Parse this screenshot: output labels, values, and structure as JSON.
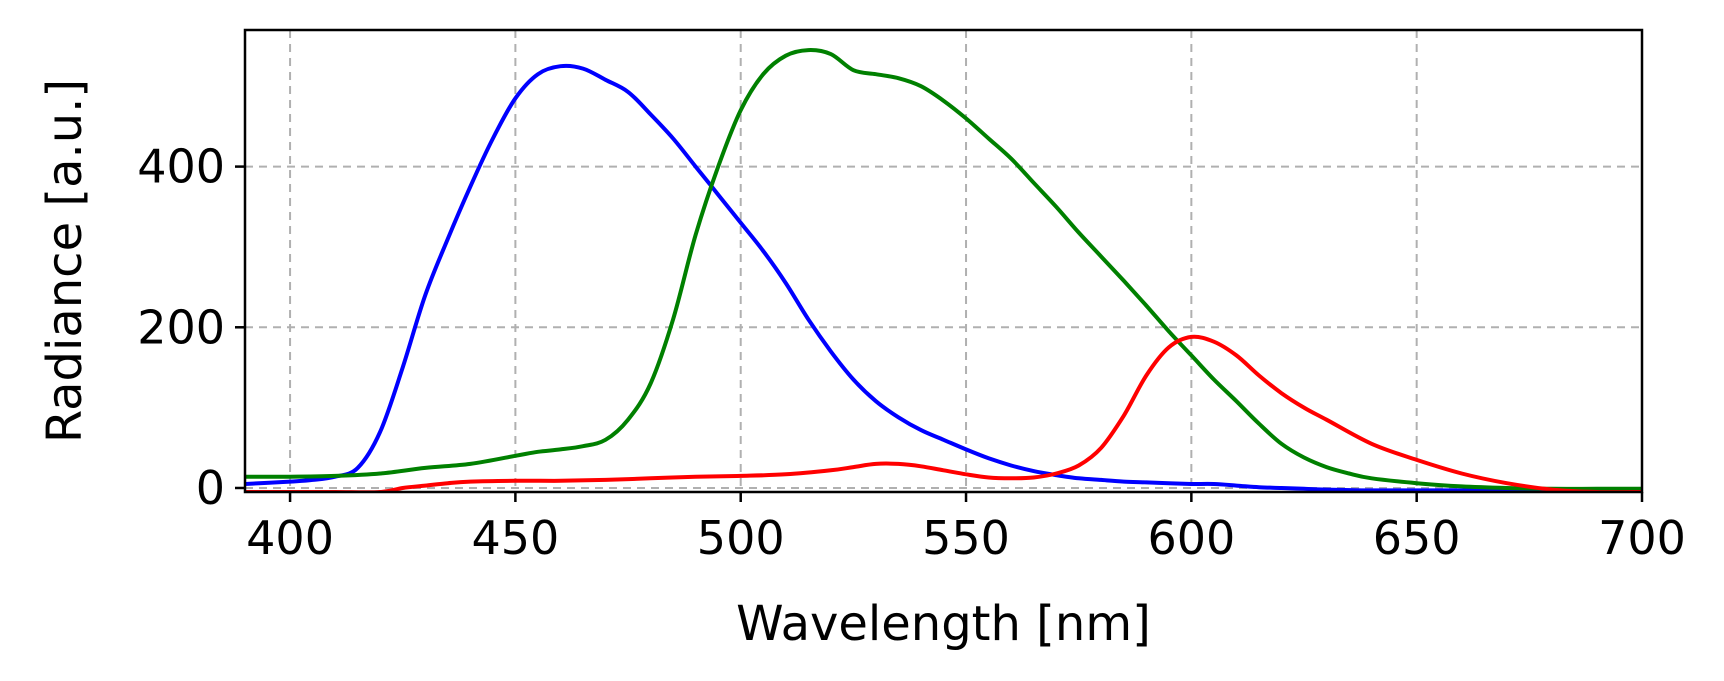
{
  "chart_data": {
    "type": "line",
    "title": "",
    "xlabel": "Wavelength [nm]",
    "ylabel": "Radiance [a.u.]",
    "xlim": [
      390,
      700
    ],
    "ylim": [
      -5,
      570
    ],
    "xticks": [
      400,
      450,
      500,
      550,
      600,
      650,
      700
    ],
    "yticks": [
      0,
      200,
      400
    ],
    "grid": true,
    "legend": "none",
    "series": [
      {
        "color": "#0000ff",
        "x": [
          390,
          400,
          405,
          410,
          415,
          420,
          425,
          430,
          435,
          440,
          445,
          450,
          455,
          460,
          465,
          470,
          475,
          480,
          485,
          490,
          495,
          500,
          505,
          510,
          515,
          520,
          525,
          530,
          535,
          540,
          545,
          550,
          555,
          560,
          565,
          570,
          575,
          580,
          585,
          590,
          595,
          600,
          605,
          610,
          615,
          620,
          625,
          630,
          640,
          650,
          660,
          670,
          680,
          690,
          700
        ],
        "y": [
          5,
          8,
          10,
          14,
          25,
          70,
          150,
          240,
          310,
          375,
          435,
          485,
          515,
          525,
          522,
          508,
          493,
          465,
          435,
          400,
          365,
          330,
          295,
          255,
          210,
          170,
          135,
          108,
          88,
          72,
          60,
          48,
          37,
          28,
          21,
          16,
          12,
          10,
          8,
          7,
          6,
          5,
          5,
          3,
          1,
          0,
          -1,
          -2,
          -3,
          -3,
          -3,
          -3,
          -3,
          -3,
          -3
        ]
      },
      {
        "color": "#008000",
        "x": [
          390,
          400,
          410,
          420,
          430,
          440,
          450,
          455,
          460,
          465,
          470,
          475,
          480,
          485,
          490,
          495,
          500,
          505,
          510,
          515,
          520,
          525,
          530,
          535,
          540,
          545,
          550,
          555,
          560,
          565,
          570,
          575,
          580,
          585,
          590,
          595,
          600,
          605,
          610,
          615,
          620,
          625,
          630,
          635,
          640,
          650,
          660,
          670,
          680,
          690,
          700
        ],
        "y": [
          14,
          14,
          15,
          18,
          25,
          30,
          40,
          45,
          48,
          52,
          60,
          85,
          130,
          210,
          315,
          400,
          470,
          515,
          538,
          545,
          540,
          520,
          515,
          510,
          500,
          482,
          460,
          435,
          410,
          380,
          350,
          318,
          288,
          258,
          227,
          195,
          165,
          135,
          108,
          80,
          55,
          38,
          26,
          18,
          12,
          6,
          2,
          0,
          -1,
          -1,
          -1
        ]
      },
      {
        "color": "#ff0000",
        "x": [
          390,
          400,
          410,
          420,
          425,
          430,
          435,
          440,
          450,
          460,
          470,
          480,
          490,
          500,
          510,
          520,
          525,
          530,
          535,
          540,
          545,
          550,
          555,
          560,
          565,
          570,
          575,
          580,
          585,
          590,
          595,
          600,
          605,
          610,
          615,
          620,
          625,
          630,
          640,
          650,
          660,
          670,
          680,
          690,
          700
        ],
        "y": [
          -5,
          -5,
          -5,
          -5,
          0,
          3,
          6,
          8,
          9,
          9,
          10,
          12,
          14,
          15,
          17,
          22,
          26,
          30,
          30,
          27,
          22,
          17,
          13,
          12,
          13,
          18,
          28,
          50,
          90,
          140,
          175,
          188,
          182,
          165,
          140,
          118,
          100,
          85,
          55,
          35,
          18,
          6,
          -2,
          -5,
          -5
        ]
      }
    ]
  }
}
